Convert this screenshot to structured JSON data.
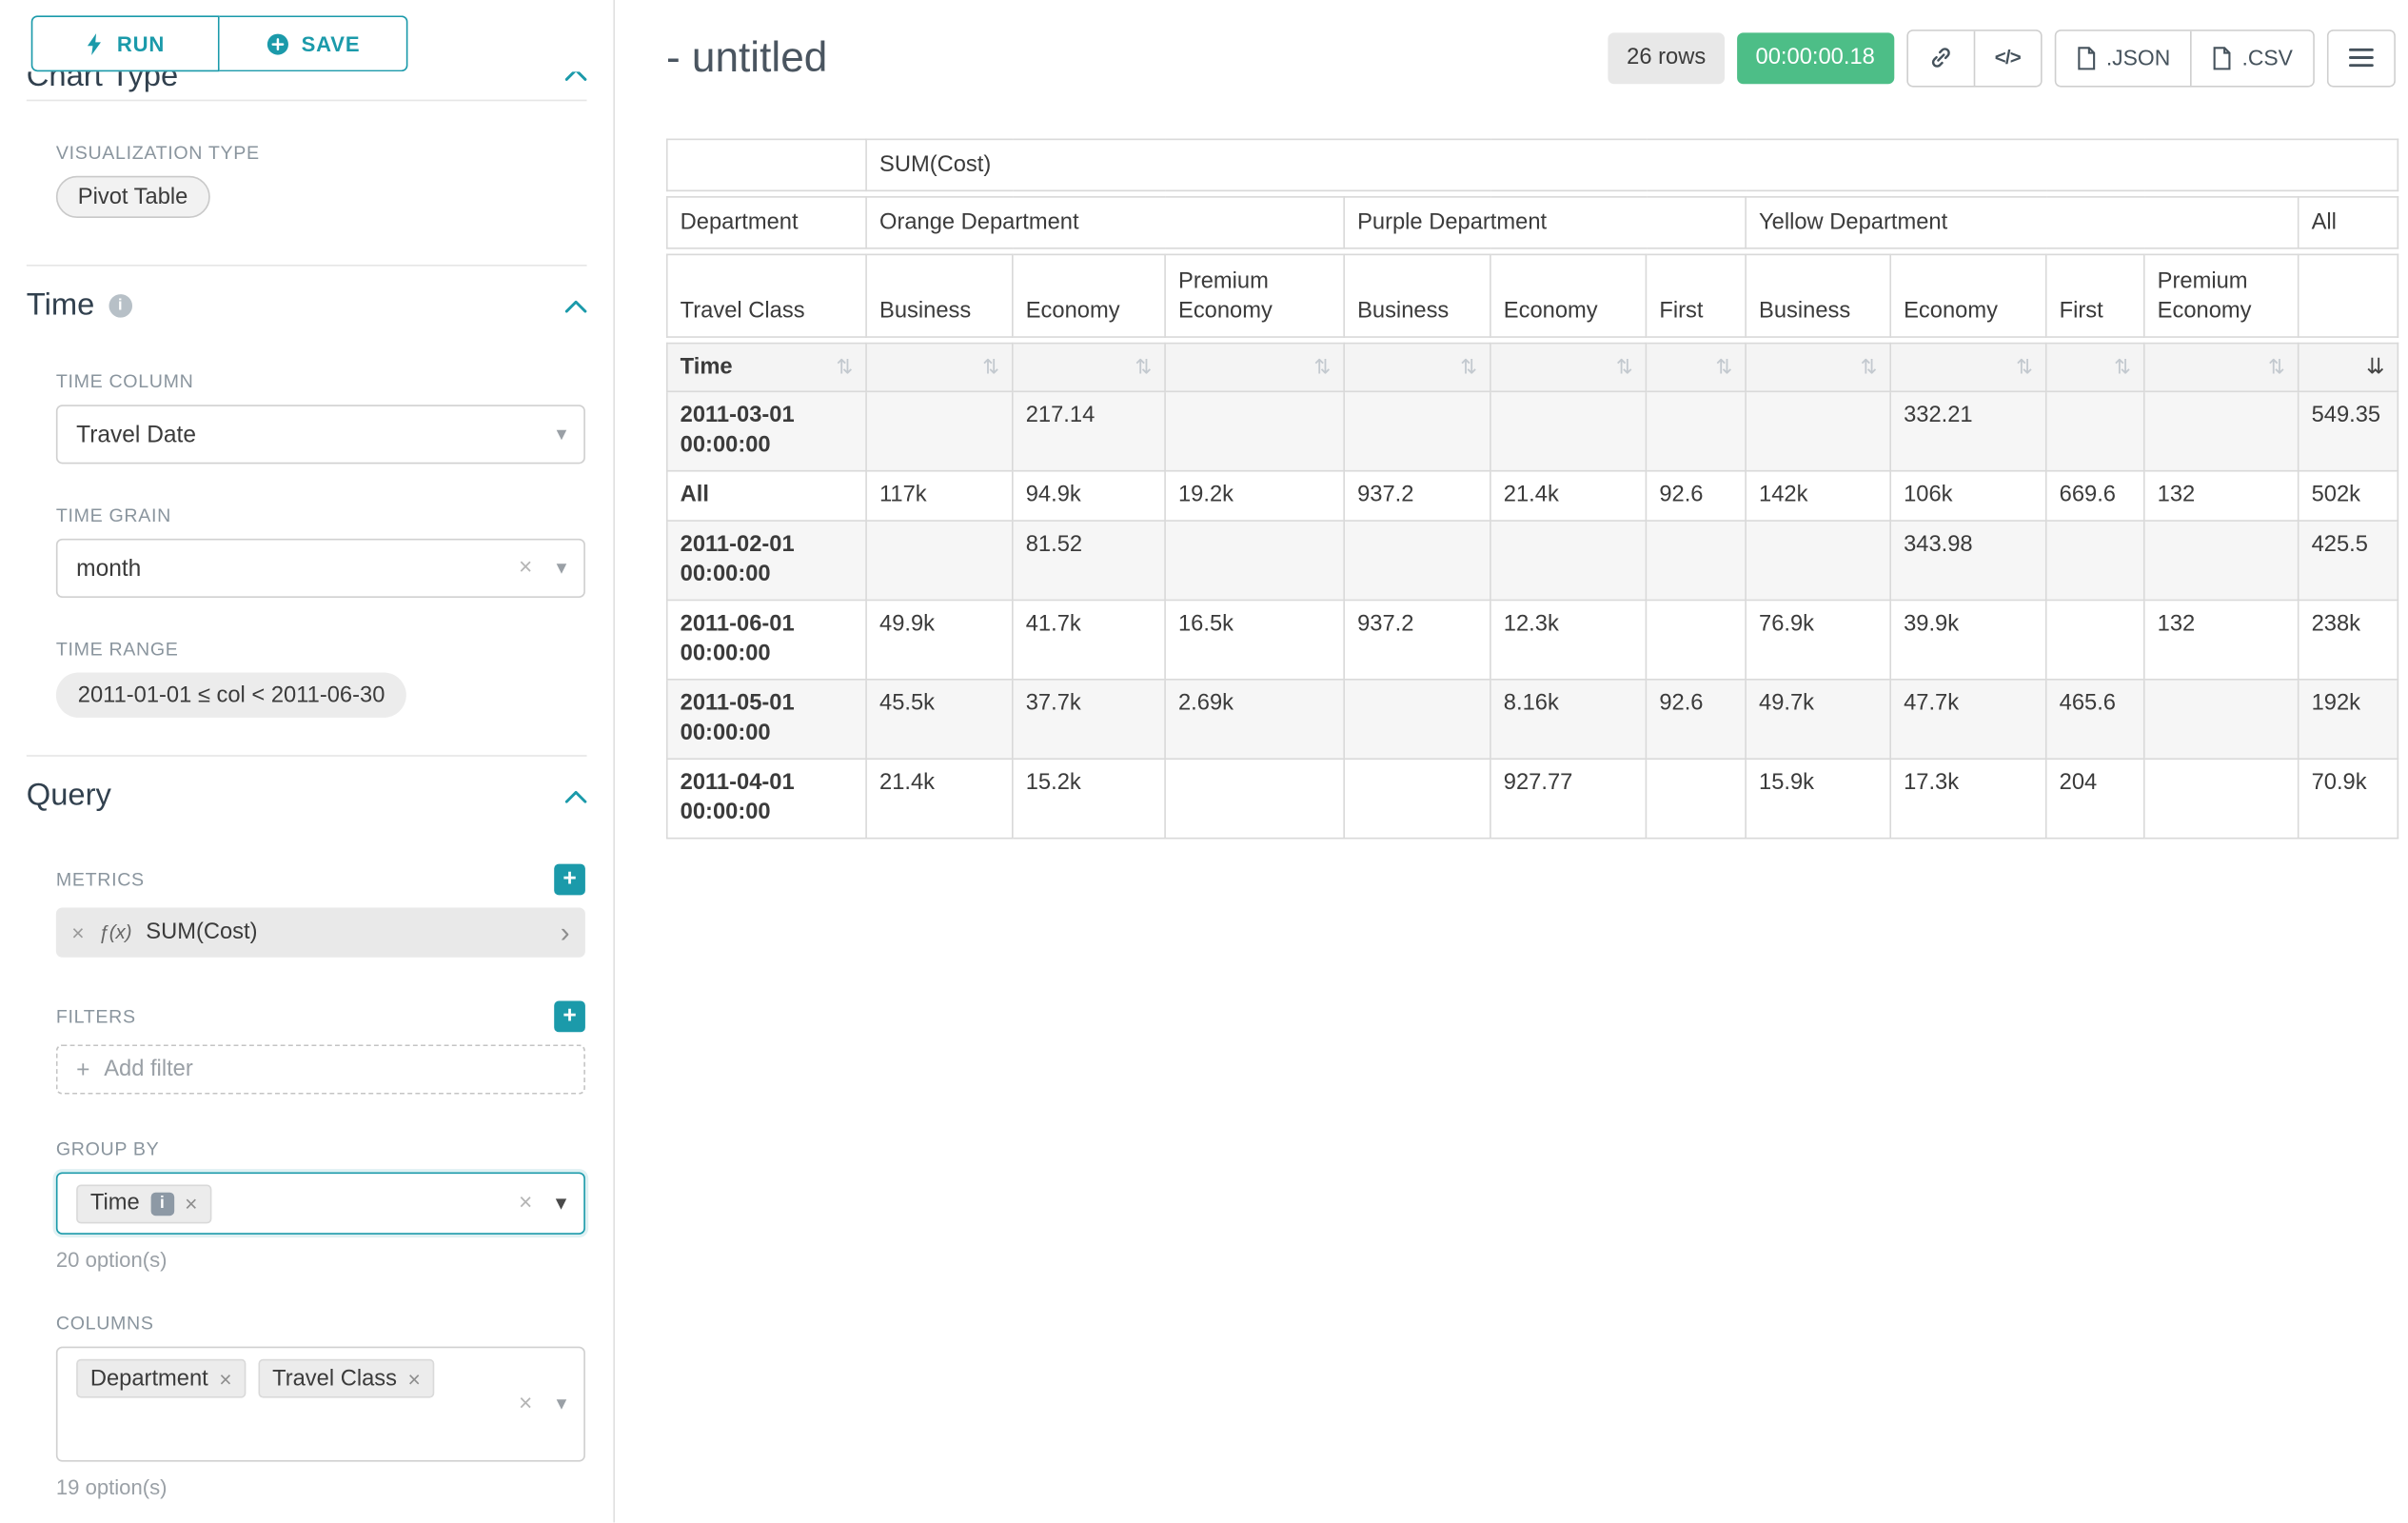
{
  "colors": {
    "accent": "#1b9aaa",
    "success_green": "#4dbe87"
  },
  "icons": {
    "sort": "⇅",
    "sort_active": "⇊",
    "caret_down": "▾",
    "close": "×",
    "plus": "+",
    "chevron_right": "›",
    "code": "</>",
    "info": "i",
    "fx": "ƒ(x)"
  },
  "sidebar": {
    "run_label": "RUN",
    "save_label": "SAVE",
    "chart_type_heading": "Chart Type",
    "visualization": {
      "label": "VISUALIZATION TYPE",
      "value": "Pivot Table"
    },
    "time_section": {
      "title": "Time",
      "time_column_label": "TIME COLUMN",
      "time_column_value": "Travel Date",
      "time_grain_label": "TIME GRAIN",
      "time_grain_value": "month",
      "time_range_label": "TIME RANGE",
      "time_range_value": "2011-01-01 ≤ col < 2011-06-30"
    },
    "query_section": {
      "title": "Query",
      "metrics_label": "METRICS",
      "metric_value": "SUM(Cost)",
      "filters_label": "FILTERS",
      "add_filter_label": "Add filter",
      "group_by_label": "GROUP BY",
      "group_by_tags": [
        "Time"
      ],
      "group_by_option_count": "20 option(s)",
      "columns_label": "COLUMNS",
      "columns_tags": [
        "Department",
        "Travel Class"
      ],
      "columns_option_count": "19 option(s)"
    }
  },
  "header": {
    "title": "- untitled",
    "rows_badge": "26 rows",
    "timer_badge": "00:00:00.18",
    "json_button_label": ".JSON",
    "csv_button_label": ".CSV"
  },
  "pivot": {
    "metric_header": "SUM(Cost)",
    "department_header": "Department",
    "travel_class_header": "Travel Class",
    "time_header": "Time",
    "all_header": "All",
    "departments": [
      {
        "name": "Orange Department",
        "classes": [
          "Business",
          "Economy",
          "Premium Economy"
        ]
      },
      {
        "name": "Purple Department",
        "classes": [
          "Business",
          "Economy",
          "First"
        ]
      },
      {
        "name": "Yellow Department",
        "classes": [
          "Business",
          "Economy",
          "First",
          "Premium Economy"
        ]
      }
    ],
    "rows": [
      {
        "time": "2011-03-01 00:00:00",
        "values": [
          "",
          "217.14",
          "",
          "",
          "",
          "",
          "",
          "332.21",
          "",
          "",
          "549.35"
        ]
      },
      {
        "time": "All",
        "values": [
          "117k",
          "94.9k",
          "19.2k",
          "937.2",
          "21.4k",
          "92.6",
          "142k",
          "106k",
          "669.6",
          "132",
          "502k"
        ]
      },
      {
        "time": "2011-02-01 00:00:00",
        "values": [
          "",
          "81.52",
          "",
          "",
          "",
          "",
          "",
          "343.98",
          "",
          "",
          "425.5"
        ]
      },
      {
        "time": "2011-06-01 00:00:00",
        "values": [
          "49.9k",
          "41.7k",
          "16.5k",
          "937.2",
          "12.3k",
          "",
          "76.9k",
          "39.9k",
          "",
          "132",
          "238k"
        ]
      },
      {
        "time": "2011-05-01 00:00:00",
        "values": [
          "45.5k",
          "37.7k",
          "2.69k",
          "",
          "8.16k",
          "92.6",
          "49.7k",
          "47.7k",
          "465.6",
          "",
          "192k"
        ]
      },
      {
        "time": "2011-04-01 00:00:00",
        "values": [
          "21.4k",
          "15.2k",
          "",
          "",
          "927.77",
          "",
          "15.9k",
          "17.3k",
          "204",
          "",
          "70.9k"
        ]
      }
    ]
  }
}
